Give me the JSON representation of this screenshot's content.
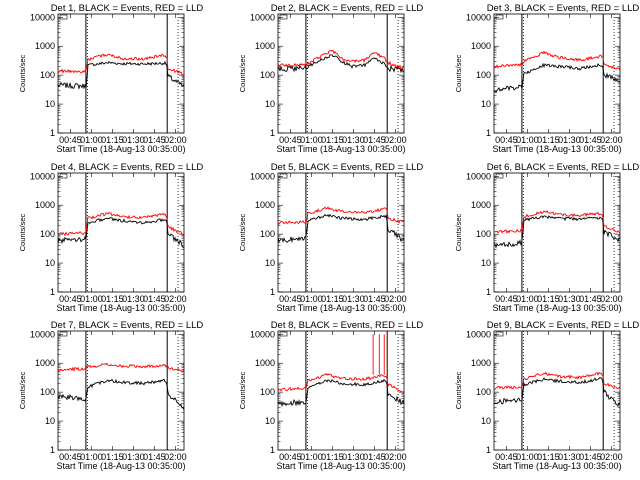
{
  "chart_data": [
    {
      "type": "line",
      "title": "Det 1, BLACK = Events, RED = LLD",
      "xlabel": "Start Time (18-Aug-13 00:35:00)",
      "ylabel": "Counts/sec",
      "yscale": "log",
      "ylim": [
        1,
        13000
      ],
      "x_ticks": [
        "00:45",
        "01:00",
        "01:15",
        "01:30",
        "01:45",
        "02:00"
      ],
      "y_ticks": [
        "1",
        "10",
        "100",
        "1000",
        "10000"
      ],
      "grid": false,
      "series": [
        {
          "color": "#000000",
          "knots": [
            [
              0,
              45
            ],
            [
              11,
              42
            ],
            [
              11.5,
              40
            ],
            [
              12,
              220
            ],
            [
              20,
              270
            ],
            [
              26,
              250
            ],
            [
              35,
              245
            ],
            [
              43,
              260
            ],
            [
              44,
              245
            ],
            [
              44.5,
              90
            ],
            [
              51,
              40
            ]
          ]
        },
        {
          "color": "#ff0000",
          "knots": [
            [
              0,
              140
            ],
            [
              11,
              130
            ],
            [
              11.5,
              130
            ],
            [
              12,
              350
            ],
            [
              20,
              520
            ],
            [
              26,
              380
            ],
            [
              35,
              360
            ],
            [
              43,
              500
            ],
            [
              44,
              430
            ],
            [
              44.5,
              170
            ],
            [
              51,
              110
            ]
          ]
        }
      ]
    },
    {
      "type": "line",
      "title": "Det 2, BLACK = Events, RED = LLD",
      "xlabel": "Start Time (18-Aug-13 00:35:00)",
      "ylabel": "Counts/sec",
      "yscale": "log",
      "ylim": [
        1,
        13000
      ],
      "x_ticks": [
        "00:45",
        "01:00",
        "01:15",
        "01:30",
        "01:45",
        "02:00"
      ],
      "y_ticks": [
        "1",
        "10",
        "100",
        "1000",
        "10000"
      ],
      "grid": false,
      "series": [
        {
          "color": "#000000",
          "knots": [
            [
              0,
              160
            ],
            [
              11,
              170
            ],
            [
              15,
              270
            ],
            [
              22,
              500
            ],
            [
              27,
              260
            ],
            [
              30,
              200
            ],
            [
              35,
              220
            ],
            [
              39,
              380
            ],
            [
              43,
              250
            ],
            [
              45,
              170
            ],
            [
              51,
              150
            ]
          ]
        },
        {
          "color": "#ff0000",
          "knots": [
            [
              0,
              220
            ],
            [
              11,
              230
            ],
            [
              15,
              350
            ],
            [
              22,
              700
            ],
            [
              27,
              330
            ],
            [
              30,
              300
            ],
            [
              35,
              320
            ],
            [
              39,
              600
            ],
            [
              43,
              380
            ],
            [
              45,
              260
            ],
            [
              51,
              170
            ]
          ]
        }
      ]
    },
    {
      "type": "line",
      "title": "Det 3, BLACK = Events, RED = LLD",
      "xlabel": "Start Time (18-Aug-13 00:35:00)",
      "ylabel": "Counts/sec",
      "yscale": "log",
      "ylim": [
        1,
        13000
      ],
      "x_ticks": [
        "00:45",
        "01:00",
        "01:15",
        "01:30",
        "01:45",
        "02:00"
      ],
      "y_ticks": [
        "1",
        "10",
        "100",
        "1000",
        "10000"
      ],
      "grid": false,
      "series": [
        {
          "color": "#000000",
          "knots": [
            [
              0,
              30
            ],
            [
              11,
              40
            ],
            [
              11.5,
              40
            ],
            [
              12,
              110
            ],
            [
              20,
              220
            ],
            [
              26,
              200
            ],
            [
              35,
              170
            ],
            [
              43,
              230
            ],
            [
              44,
              220
            ],
            [
              44.5,
              100
            ],
            [
              51,
              70
            ]
          ]
        },
        {
          "color": "#ff0000",
          "knots": [
            [
              0,
              200
            ],
            [
              11,
              230
            ],
            [
              11.5,
              230
            ],
            [
              12,
              300
            ],
            [
              20,
              600
            ],
            [
              26,
              420
            ],
            [
              35,
              330
            ],
            [
              43,
              450
            ],
            [
              44,
              420
            ],
            [
              44.5,
              240
            ],
            [
              51,
              150
            ]
          ]
        }
      ]
    },
    {
      "type": "line",
      "title": "Det 4, BLACK = Events, RED = LLD",
      "xlabel": "Start Time (18-Aug-13 00:35:00)",
      "ylabel": "Counts/sec",
      "yscale": "log",
      "ylim": [
        1,
        13000
      ],
      "x_ticks": [
        "00:45",
        "01:00",
        "01:15",
        "01:30",
        "01:45",
        "02:00"
      ],
      "y_ticks": [
        "1",
        "10",
        "100",
        "1000",
        "10000"
      ],
      "grid": false,
      "series": [
        {
          "color": "#000000",
          "knots": [
            [
              0,
              60
            ],
            [
              11,
              70
            ],
            [
              11.5,
              70
            ],
            [
              12,
              250
            ],
            [
              20,
              350
            ],
            [
              26,
              290
            ],
            [
              35,
              250
            ],
            [
              43,
              320
            ],
            [
              44,
              300
            ],
            [
              44.5,
              100
            ],
            [
              51,
              40
            ]
          ]
        },
        {
          "color": "#ff0000",
          "knots": [
            [
              0,
              100
            ],
            [
              11,
              110
            ],
            [
              11.5,
              110
            ],
            [
              12,
              350
            ],
            [
              20,
              520
            ],
            [
              26,
              400
            ],
            [
              35,
              380
            ],
            [
              43,
              480
            ],
            [
              44,
              450
            ],
            [
              44.5,
              180
            ],
            [
              51,
              100
            ]
          ]
        }
      ]
    },
    {
      "type": "line",
      "title": "Det 5, BLACK = Events, RED = LLD",
      "xlabel": "Start Time (18-Aug-13 00:35:00)",
      "ylabel": "Counts/sec",
      "yscale": "log",
      "ylim": [
        1,
        13000
      ],
      "x_ticks": [
        "00:45",
        "01:00",
        "01:15",
        "01:30",
        "01:45",
        "02:00"
      ],
      "y_ticks": [
        "1",
        "10",
        "100",
        "1000",
        "10000"
      ],
      "grid": false,
      "series": [
        {
          "color": "#000000",
          "knots": [
            [
              0,
              60
            ],
            [
              11,
              75
            ],
            [
              11.5,
              75
            ],
            [
              12,
              300
            ],
            [
              20,
              450
            ],
            [
              26,
              350
            ],
            [
              35,
              320
            ],
            [
              43,
              420
            ],
            [
              44,
              400
            ],
            [
              44.5,
              150
            ],
            [
              51,
              60
            ]
          ]
        },
        {
          "color": "#ff0000",
          "knots": [
            [
              0,
              250
            ],
            [
              11,
              260
            ],
            [
              11.5,
              260
            ],
            [
              12,
              500
            ],
            [
              20,
              800
            ],
            [
              26,
              600
            ],
            [
              35,
              560
            ],
            [
              43,
              750
            ],
            [
              44,
              700
            ],
            [
              44.5,
              350
            ],
            [
              51,
              250
            ]
          ]
        }
      ]
    },
    {
      "type": "line",
      "title": "Det 6, BLACK = Events, RED = LLD",
      "xlabel": "Start Time (18-Aug-13 00:35:00)",
      "ylabel": "Counts/sec",
      "yscale": "log",
      "ylim": [
        1,
        13000
      ],
      "x_ticks": [
        "00:45",
        "01:00",
        "01:15",
        "01:30",
        "01:45",
        "02:00"
      ],
      "y_ticks": [
        "1",
        "10",
        "100",
        "1000",
        "10000"
      ],
      "grid": false,
      "series": [
        {
          "color": "#000000",
          "knots": [
            [
              0,
              40
            ],
            [
              11,
              50
            ],
            [
              11.5,
              50
            ],
            [
              12,
              300
            ],
            [
              20,
              400
            ],
            [
              26,
              350
            ],
            [
              35,
              330
            ],
            [
              43,
              380
            ],
            [
              44,
              360
            ],
            [
              44.5,
              120
            ],
            [
              51,
              60
            ]
          ]
        },
        {
          "color": "#ff0000",
          "knots": [
            [
              0,
              120
            ],
            [
              11,
              130
            ],
            [
              11.5,
              130
            ],
            [
              12,
              400
            ],
            [
              20,
              600
            ],
            [
              26,
              480
            ],
            [
              35,
              450
            ],
            [
              43,
              520
            ],
            [
              44,
              500
            ],
            [
              44.5,
              200
            ],
            [
              51,
              110
            ]
          ]
        }
      ]
    },
    {
      "type": "line",
      "title": "Det 7, BLACK = Events, RED = LLD",
      "xlabel": "Start Time (18-Aug-13 00:35:00)",
      "ylabel": "Counts/sec",
      "yscale": "log",
      "ylim": [
        1,
        13000
      ],
      "x_ticks": [
        "00:45",
        "01:00",
        "01:15",
        "01:30",
        "01:45",
        "02:00"
      ],
      "y_ticks": [
        "1",
        "10",
        "100",
        "1000",
        "10000"
      ],
      "grid": false,
      "series": [
        {
          "color": "#000000",
          "knots": [
            [
              0,
              70
            ],
            [
              11,
              60
            ],
            [
              11.5,
              60
            ],
            [
              12,
              150
            ],
            [
              20,
              260
            ],
            [
              26,
              220
            ],
            [
              35,
              200
            ],
            [
              43,
              250
            ],
            [
              44,
              240
            ],
            [
              44.5,
              90
            ],
            [
              51,
              30
            ]
          ]
        },
        {
          "color": "#ff0000",
          "knots": [
            [
              0,
              600
            ],
            [
              11,
              650
            ],
            [
              11.5,
              650
            ],
            [
              12,
              750
            ],
            [
              20,
              900
            ],
            [
              26,
              800
            ],
            [
              35,
              780
            ],
            [
              43,
              850
            ],
            [
              44,
              800
            ],
            [
              44.5,
              700
            ],
            [
              51,
              550
            ]
          ]
        }
      ]
    },
    {
      "type": "line",
      "title": "Det 8, BLACK = Events, RED = LLD",
      "xlabel": "Start Time (18-Aug-13 00:35:00)",
      "ylabel": "Counts/sec",
      "yscale": "log",
      "ylim": [
        1,
        13000
      ],
      "x_ticks": [
        "00:45",
        "01:00",
        "01:15",
        "01:30",
        "01:45",
        "02:00"
      ],
      "y_ticks": [
        "1",
        "10",
        "100",
        "1000",
        "10000"
      ],
      "grid": false,
      "series": [
        {
          "color": "#000000",
          "knots": [
            [
              0,
              40
            ],
            [
              11,
              45
            ],
            [
              11.5,
              45
            ],
            [
              12,
              140
            ],
            [
              20,
              260
            ],
            [
              26,
              200
            ],
            [
              35,
              180
            ],
            [
              43,
              250
            ],
            [
              44,
              230
            ],
            [
              44.5,
              90
            ],
            [
              51,
              40
            ]
          ]
        },
        {
          "color": "#ff0000",
          "knots": [
            [
              0,
              120
            ],
            [
              11,
              140
            ],
            [
              11.5,
              140
            ],
            [
              12,
              250
            ],
            [
              20,
              400
            ],
            [
              26,
              300
            ],
            [
              35,
              280
            ],
            [
              43,
              380
            ],
            [
              44,
              350
            ],
            [
              44.5,
              180
            ],
            [
              51,
              100
            ]
          ]
        }
      ],
      "annotations": [
        {
          "type": "spikes",
          "color": "#ff0000",
          "x": [
            38.5,
            41,
            43
          ],
          "peak": 10000
        }
      ]
    },
    {
      "type": "line",
      "title": "Det 9, BLACK = Events, RED = LLD",
      "xlabel": "Start Time (18-Aug-13 00:35:00)",
      "ylabel": "Counts/sec",
      "yscale": "log",
      "ylim": [
        1,
        13000
      ],
      "x_ticks": [
        "00:45",
        "01:00",
        "01:15",
        "01:30",
        "01:45",
        "02:00"
      ],
      "y_ticks": [
        "1",
        "10",
        "100",
        "1000",
        "10000"
      ],
      "grid": false,
      "series": [
        {
          "color": "#000000",
          "knots": [
            [
              0,
              45
            ],
            [
              11,
              55
            ],
            [
              11.5,
              55
            ],
            [
              12,
              180
            ],
            [
              20,
              280
            ],
            [
              26,
              240
            ],
            [
              35,
              220
            ],
            [
              43,
              290
            ],
            [
              44,
              280
            ],
            [
              44.5,
              100
            ],
            [
              51,
              35
            ]
          ]
        },
        {
          "color": "#ff0000",
          "knots": [
            [
              0,
              140
            ],
            [
              11,
              150
            ],
            [
              11.5,
              150
            ],
            [
              12,
              280
            ],
            [
              20,
              450
            ],
            [
              26,
              350
            ],
            [
              35,
              320
            ],
            [
              43,
              450
            ],
            [
              44,
              420
            ],
            [
              44.5,
              200
            ],
            [
              51,
              130
            ]
          ]
        }
      ]
    }
  ]
}
